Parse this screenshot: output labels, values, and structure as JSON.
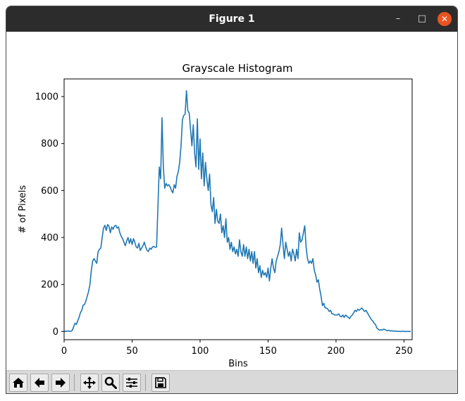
{
  "window": {
    "title": "Figure 1",
    "minimize_glyph": "–",
    "maximize_glyph": "□",
    "close_glyph": "✕"
  },
  "toolbar": {
    "buttons": [
      "home-icon",
      "back-arrow-icon",
      "forward-arrow-icon",
      "pan-icon",
      "zoom-icon",
      "configure-subplots-icon",
      "save-icon"
    ]
  },
  "chart_data": {
    "type": "line",
    "title": "Grayscale Histogram",
    "xlabel": "Bins",
    "ylabel": "# of Pixels",
    "xlim": [
      0,
      256
    ],
    "ylim": [
      -35,
      1075
    ],
    "xticks": [
      0,
      50,
      100,
      150,
      200,
      250
    ],
    "yticks": [
      0,
      200,
      400,
      600,
      800,
      1000
    ],
    "grid": false,
    "line_color": "#1f77b4",
    "series": [
      {
        "points": [
          [
            0,
            0
          ],
          [
            3,
            2
          ],
          [
            5,
            0
          ],
          [
            6,
            5
          ],
          [
            7,
            20
          ],
          [
            8,
            35
          ],
          [
            9,
            30
          ],
          [
            10,
            45
          ],
          [
            11,
            60
          ],
          [
            12,
            80
          ],
          [
            13,
            90
          ],
          [
            14,
            112
          ],
          [
            15,
            115
          ],
          [
            16,
            130
          ],
          [
            17,
            150
          ],
          [
            18,
            170
          ],
          [
            19,
            200
          ],
          [
            20,
            260
          ],
          [
            21,
            300
          ],
          [
            22,
            310
          ],
          [
            23,
            300
          ],
          [
            24,
            290
          ],
          [
            25,
            340
          ],
          [
            26,
            350
          ],
          [
            27,
            355
          ],
          [
            28,
            400
          ],
          [
            29,
            440
          ],
          [
            30,
            452
          ],
          [
            31,
            430
          ],
          [
            32,
            455
          ],
          [
            33,
            448
          ],
          [
            34,
            420
          ],
          [
            35,
            445
          ],
          [
            36,
            435
          ],
          [
            37,
            448
          ],
          [
            38,
            452
          ],
          [
            39,
            440
          ],
          [
            40,
            445
          ],
          [
            41,
            420
          ],
          [
            42,
            405
          ],
          [
            43,
            395
          ],
          [
            44,
            380
          ],
          [
            45,
            365
          ],
          [
            46,
            385
          ],
          [
            47,
            400
          ],
          [
            48,
            375
          ],
          [
            49,
            395
          ],
          [
            50,
            370
          ],
          [
            51,
            395
          ],
          [
            52,
            380
          ],
          [
            53,
            360
          ],
          [
            54,
            355
          ],
          [
            55,
            375
          ],
          [
            56,
            345
          ],
          [
            57,
            355
          ],
          [
            58,
            365
          ],
          [
            59,
            380
          ],
          [
            60,
            360
          ],
          [
            61,
            345
          ],
          [
            62,
            340
          ],
          [
            63,
            355
          ],
          [
            64,
            350
          ],
          [
            65,
            360
          ],
          [
            66,
            362
          ],
          [
            67,
            358
          ],
          [
            68,
            360
          ],
          [
            69,
            530
          ],
          [
            70,
            700
          ],
          [
            71,
            650
          ],
          [
            72,
            910
          ],
          [
            73,
            700
          ],
          [
            74,
            610
          ],
          [
            75,
            630
          ],
          [
            76,
            620
          ],
          [
            77,
            625
          ],
          [
            78,
            615
          ],
          [
            79,
            600
          ],
          [
            80,
            590
          ],
          [
            81,
            625
          ],
          [
            82,
            610
          ],
          [
            83,
            660
          ],
          [
            84,
            680
          ],
          [
            85,
            720
          ],
          [
            86,
            790
          ],
          [
            87,
            900
          ],
          [
            88,
            920
          ],
          [
            89,
            925
          ],
          [
            90,
            1025
          ],
          [
            91,
            940
          ],
          [
            92,
            930
          ],
          [
            93,
            860
          ],
          [
            94,
            790
          ],
          [
            95,
            880
          ],
          [
            96,
            760
          ],
          [
            97,
            700
          ],
          [
            98,
            905
          ],
          [
            99,
            690
          ],
          [
            100,
            820
          ],
          [
            101,
            650
          ],
          [
            102,
            760
          ],
          [
            103,
            620
          ],
          [
            104,
            720
          ],
          [
            105,
            650
          ],
          [
            106,
            600
          ],
          [
            107,
            670
          ],
          [
            108,
            540
          ],
          [
            109,
            510
          ],
          [
            110,
            570
          ],
          [
            111,
            460
          ],
          [
            112,
            520
          ],
          [
            113,
            470
          ],
          [
            114,
            460
          ],
          [
            115,
            500
          ],
          [
            116,
            420
          ],
          [
            117,
            450
          ],
          [
            118,
            400
          ],
          [
            119,
            480
          ],
          [
            120,
            380
          ],
          [
            121,
            400
          ],
          [
            122,
            350
          ],
          [
            123,
            380
          ],
          [
            124,
            340
          ],
          [
            125,
            360
          ],
          [
            126,
            330
          ],
          [
            127,
            350
          ],
          [
            128,
            320
          ],
          [
            129,
            390
          ],
          [
            130,
            340
          ],
          [
            131,
            320
          ],
          [
            132,
            370
          ],
          [
            133,
            320
          ],
          [
            134,
            360
          ],
          [
            135,
            310
          ],
          [
            136,
            350
          ],
          [
            137,
            300
          ],
          [
            138,
            340
          ],
          [
            139,
            290
          ],
          [
            140,
            340
          ],
          [
            141,
            270
          ],
          [
            142,
            310
          ],
          [
            143,
            250
          ],
          [
            144,
            280
          ],
          [
            145,
            230
          ],
          [
            146,
            260
          ],
          [
            147,
            240
          ],
          [
            148,
            250
          ],
          [
            149,
            230
          ],
          [
            150,
            270
          ],
          [
            151,
            215
          ],
          [
            152,
            270
          ],
          [
            153,
            310
          ],
          [
            154,
            270
          ],
          [
            155,
            250
          ],
          [
            156,
            300
          ],
          [
            157,
            320
          ],
          [
            158,
            340
          ],
          [
            159,
            370
          ],
          [
            160,
            440
          ],
          [
            161,
            370
          ],
          [
            162,
            310
          ],
          [
            163,
            380
          ],
          [
            164,
            350
          ],
          [
            165,
            320
          ],
          [
            166,
            340
          ],
          [
            167,
            300
          ],
          [
            168,
            350
          ],
          [
            169,
            330
          ],
          [
            170,
            300
          ],
          [
            171,
            350
          ],
          [
            172,
            310
          ],
          [
            173,
            420
          ],
          [
            174,
            380
          ],
          [
            175,
            390
          ],
          [
            176,
            420
          ],
          [
            177,
            450
          ],
          [
            178,
            360
          ],
          [
            179,
            310
          ],
          [
            180,
            290
          ],
          [
            181,
            300
          ],
          [
            182,
            290
          ],
          [
            183,
            310
          ],
          [
            184,
            260
          ],
          [
            185,
            240
          ],
          [
            186,
            210
          ],
          [
            187,
            220
          ],
          [
            188,
            180
          ],
          [
            189,
            150
          ],
          [
            190,
            110
          ],
          [
            191,
            120
          ],
          [
            192,
            100
          ],
          [
            193,
            100
          ],
          [
            194,
            95
          ],
          [
            195,
            85
          ],
          [
            196,
            90
          ],
          [
            197,
            75
          ],
          [
            198,
            75
          ],
          [
            199,
            70
          ],
          [
            200,
            70
          ],
          [
            201,
            70
          ],
          [
            202,
            75
          ],
          [
            203,
            65
          ],
          [
            204,
            62
          ],
          [
            205,
            70
          ],
          [
            206,
            60
          ],
          [
            207,
            70
          ],
          [
            208,
            65
          ],
          [
            209,
            60
          ],
          [
            210,
            55
          ],
          [
            211,
            65
          ],
          [
            212,
            70
          ],
          [
            213,
            80
          ],
          [
            214,
            90
          ],
          [
            215,
            85
          ],
          [
            216,
            95
          ],
          [
            217,
            90
          ],
          [
            218,
            95
          ],
          [
            219,
            100
          ],
          [
            220,
            92
          ],
          [
            221,
            85
          ],
          [
            222,
            90
          ],
          [
            223,
            80
          ],
          [
            224,
            70
          ],
          [
            225,
            60
          ],
          [
            226,
            50
          ],
          [
            227,
            45
          ],
          [
            228,
            35
          ],
          [
            229,
            30
          ],
          [
            230,
            15
          ],
          [
            231,
            10
          ],
          [
            232,
            5
          ],
          [
            233,
            8
          ],
          [
            234,
            6
          ],
          [
            235,
            10
          ],
          [
            236,
            8
          ],
          [
            237,
            5
          ],
          [
            238,
            3
          ],
          [
            239,
            5
          ],
          [
            240,
            2
          ],
          [
            241,
            3
          ],
          [
            242,
            2
          ],
          [
            243,
            1
          ],
          [
            244,
            2
          ],
          [
            245,
            0
          ],
          [
            246,
            1
          ],
          [
            247,
            0
          ],
          [
            248,
            0
          ],
          [
            249,
            1
          ],
          [
            250,
            0
          ],
          [
            252,
            0
          ],
          [
            255,
            0
          ]
        ]
      }
    ]
  }
}
